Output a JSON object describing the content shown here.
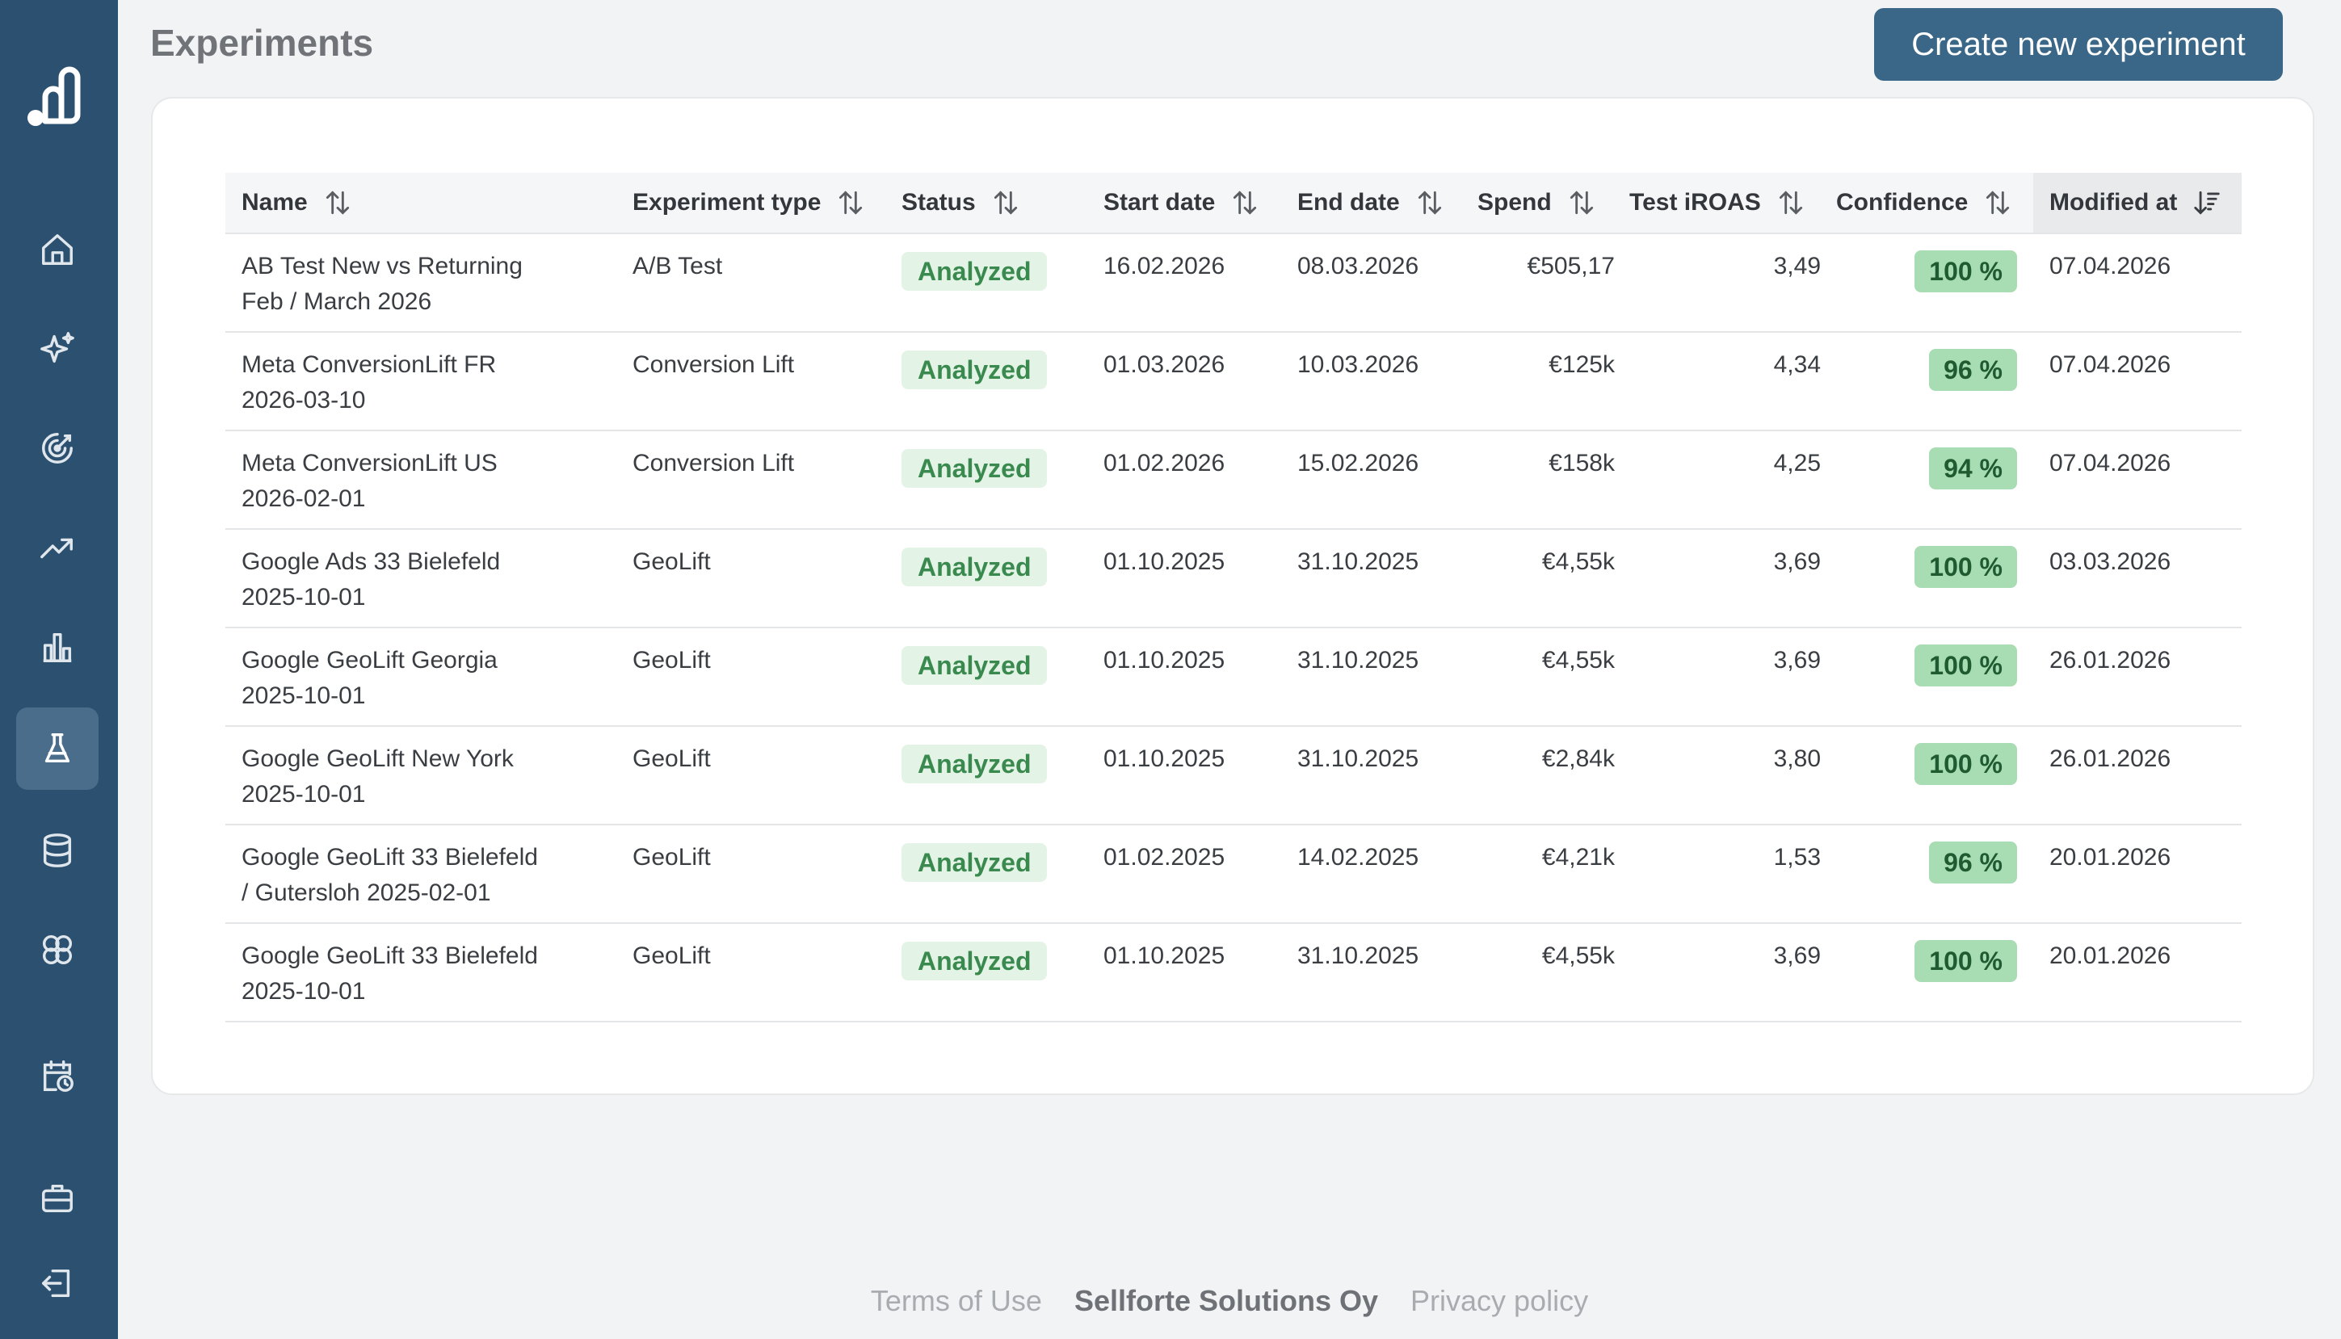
{
  "page": {
    "title": "Experiments",
    "create_button": "Create new experiment"
  },
  "sidebar": {
    "items": [
      {
        "icon": "home-icon"
      },
      {
        "icon": "sparkles-icon"
      },
      {
        "icon": "target-icon"
      },
      {
        "icon": "trending-up-icon"
      },
      {
        "icon": "bar-chart-icon"
      },
      {
        "icon": "flask-icon",
        "active": true
      },
      {
        "icon": "database-icon"
      },
      {
        "icon": "brain-icon"
      },
      {
        "icon": "calendar-clock-icon"
      },
      {
        "icon": "briefcase-icon"
      },
      {
        "icon": "logout-icon"
      }
    ]
  },
  "table": {
    "columns": [
      "Name",
      "Experiment type",
      "Status",
      "Start date",
      "End date",
      "Spend",
      "Test iROAS",
      "Confidence",
      "Modified at"
    ],
    "rows": [
      {
        "name1": "AB Test New vs Returning",
        "name2": "Feb / March 2026",
        "type": "A/B Test",
        "status": "Analyzed",
        "start": "16.02.2026",
        "end": "08.03.2026",
        "spend": "€505,17",
        "iroas": "3,49",
        "confidence": "100 %",
        "modified": "07.04.2026"
      },
      {
        "name1": "Meta ConversionLift FR",
        "name2": "2026-03-10",
        "type": "Conversion Lift",
        "status": "Analyzed",
        "start": "01.03.2026",
        "end": "10.03.2026",
        "spend": "€125k",
        "iroas": "4,34",
        "confidence": "96 %",
        "modified": "07.04.2026"
      },
      {
        "name1": "Meta ConversionLift US",
        "name2": "2026-02-01",
        "type": "Conversion Lift",
        "status": "Analyzed",
        "start": "01.02.2026",
        "end": "15.02.2026",
        "spend": "€158k",
        "iroas": "4,25",
        "confidence": "94 %",
        "modified": "07.04.2026"
      },
      {
        "name1": "Google Ads 33 Bielefeld",
        "name2": "2025-10-01",
        "type": "GeoLift",
        "status": "Analyzed",
        "start": "01.10.2025",
        "end": "31.10.2025",
        "spend": "€4,55k",
        "iroas": "3,69",
        "confidence": "100 %",
        "modified": "03.03.2026"
      },
      {
        "name1": "Google GeoLift Georgia",
        "name2": "2025-10-01",
        "type": "GeoLift",
        "status": "Analyzed",
        "start": "01.10.2025",
        "end": "31.10.2025",
        "spend": "€4,55k",
        "iroas": "3,69",
        "confidence": "100 %",
        "modified": "26.01.2026"
      },
      {
        "name1": "Google GeoLift New York",
        "name2": "2025-10-01",
        "type": "GeoLift",
        "status": "Analyzed",
        "start": "01.10.2025",
        "end": "31.10.2025",
        "spend": "€2,84k",
        "iroas": "3,80",
        "confidence": "100 %",
        "modified": "26.01.2026"
      },
      {
        "name1": "Google GeoLift 33 Bielefeld",
        "name2": "/ Gutersloh 2025-02-01",
        "type": "GeoLift",
        "status": "Analyzed",
        "start": "01.02.2025",
        "end": "14.02.2025",
        "spend": "€4,21k",
        "iroas": "1,53",
        "confidence": "96 %",
        "modified": "20.01.2026"
      },
      {
        "name1": "Google GeoLift 33 Bielefeld",
        "name2": "2025-10-01",
        "type": "GeoLift",
        "status": "Analyzed",
        "start": "01.10.2025",
        "end": "31.10.2025",
        "spend": "€4,55k",
        "iroas": "3,69",
        "confidence": "100 %",
        "modified": "20.01.2026"
      }
    ]
  },
  "footer": {
    "terms": "Terms of Use",
    "company": "Sellforte Solutions Oy",
    "privacy": "Privacy policy"
  },
  "colors": {
    "sidebar": "#2b5070",
    "primary_button": "#3a6788",
    "status_badge_bg": "#e3f3e6",
    "status_badge_text": "#3a8a4f",
    "confidence_badge_bg": "#a8ddb3"
  }
}
